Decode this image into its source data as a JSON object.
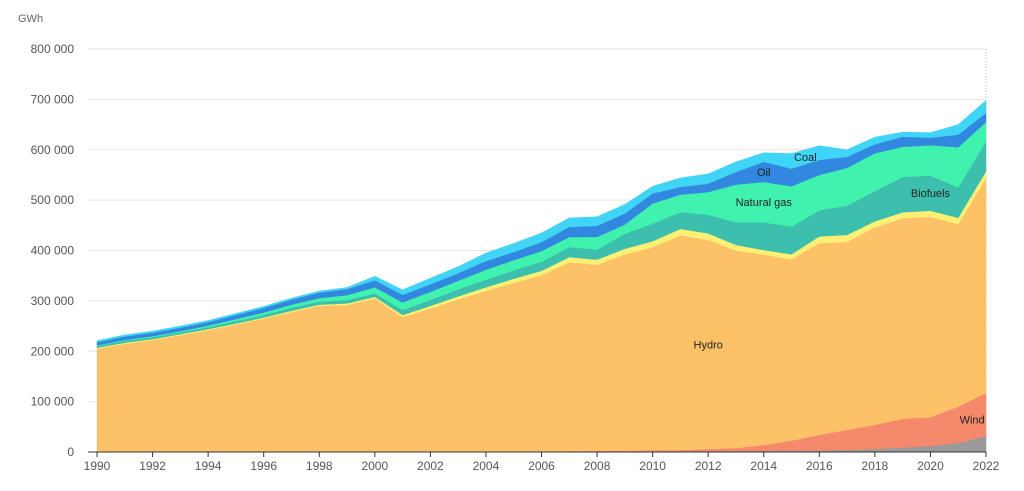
{
  "chart_data": {
    "type": "area",
    "stacked": true,
    "unit": "GWh",
    "x": [
      1990,
      1991,
      1992,
      1993,
      1994,
      1995,
      1996,
      1997,
      1998,
      1999,
      2000,
      2001,
      2002,
      2003,
      2004,
      2005,
      2006,
      2007,
      2008,
      2009,
      2010,
      2011,
      2012,
      2013,
      2014,
      2015,
      2016,
      2017,
      2018,
      2019,
      2020,
      2021,
      2022
    ],
    "xticks": [
      1990,
      1992,
      1994,
      1996,
      1998,
      2000,
      2002,
      2004,
      2006,
      2008,
      2010,
      2012,
      2014,
      2016,
      2018,
      2020,
      2022
    ],
    "yticks": [
      0,
      100000,
      200000,
      300000,
      400000,
      500000,
      600000,
      700000,
      800000
    ],
    "ytick_labels": [
      "0",
      "100 000",
      "200 000",
      "300 000",
      "400 000",
      "500 000",
      "600 000",
      "700 000",
      "800 000"
    ],
    "ylim": [
      0,
      800000
    ],
    "xlim": [
      1990,
      2022
    ],
    "grid": true,
    "series": [
      {
        "name": "",
        "color": "#9a9a9a",
        "values": [
          0,
          0,
          0,
          0,
          0,
          0,
          0,
          0,
          0,
          0,
          0,
          0,
          0,
          0,
          0,
          0,
          500,
          1000,
          1000,
          1000,
          1500,
          1500,
          2000,
          2000,
          2000,
          2500,
          3000,
          4000,
          6000,
          9000,
          12000,
          18000,
          32000
        ]
      },
      {
        "name": "Wind",
        "color": "#f5896b",
        "values": [
          0,
          0,
          0,
          0,
          0,
          0,
          0,
          0,
          0,
          0,
          0,
          0,
          0,
          0,
          0,
          0,
          300,
          800,
          1000,
          1500,
          2000,
          2500,
          4000,
          6000,
          12000,
          20000,
          31000,
          40000,
          48000,
          57000,
          57000,
          72000,
          85000
        ]
      },
      {
        "name": "Hydro",
        "color": "#fdc268",
        "values": [
          205000,
          215000,
          222000,
          232000,
          242000,
          253000,
          265000,
          278000,
          290000,
          292000,
          305000,
          268000,
          285000,
          303000,
          320000,
          336000,
          350000,
          375000,
          370000,
          390000,
          403000,
          426000,
          415000,
          392000,
          378000,
          360000,
          381000,
          373000,
          392000,
          398000,
          398000,
          362000,
          427000
        ]
      },
      {
        "name": "",
        "color": "#fef074",
        "values": [
          2000,
          2000,
          2000,
          2000,
          2000,
          2000,
          2000,
          2500,
          2500,
          3000,
          3000,
          4000,
          5000,
          6000,
          7000,
          8000,
          9000,
          10000,
          10000,
          11000,
          12000,
          13000,
          13000,
          11000,
          9000,
          10000,
          13000,
          14000,
          12000,
          12000,
          12000,
          13000,
          13000
        ]
      },
      {
        "name": "Biofuels",
        "color": "#3dbfae",
        "values": [
          4000,
          4000,
          4000,
          4000,
          4000,
          5000,
          5000,
          6000,
          6000,
          6500,
          7000,
          10000,
          12000,
          14000,
          15000,
          17000,
          18000,
          20000,
          20000,
          30000,
          35000,
          33000,
          37000,
          45000,
          55000,
          55000,
          52000,
          58000,
          60000,
          70000,
          70000,
          60000,
          60000
        ]
      },
      {
        "name": "Natural gas",
        "color": "#41f2ae",
        "values": [
          1000,
          1500,
          2000,
          2000,
          3000,
          4000,
          5000,
          6000,
          7000,
          10000,
          12000,
          15000,
          16000,
          17000,
          20000,
          20000,
          21000,
          20000,
          25000,
          18000,
          40000,
          35000,
          45000,
          75000,
          80000,
          80000,
          70000,
          75000,
          75000,
          60000,
          60000,
          80000,
          38000
        ]
      },
      {
        "name": "Oil",
        "color": "#3287de",
        "values": [
          6000,
          7000,
          7000,
          7000,
          7000,
          8000,
          9000,
          10000,
          11000,
          12000,
          14000,
          15000,
          15000,
          15000,
          17000,
          16000,
          18000,
          20000,
          22000,
          22000,
          20000,
          15000,
          17000,
          25000,
          40000,
          35000,
          30000,
          22000,
          18000,
          20000,
          15000,
          25000,
          18000
        ]
      },
      {
        "name": "Coal",
        "color": "#40d4f6",
        "values": [
          3000,
          3000,
          3000,
          3000,
          3000,
          3000,
          3000,
          3000,
          3000,
          3000,
          8000,
          10000,
          12000,
          13000,
          16000,
          17000,
          18000,
          18000,
          18000,
          18000,
          14000,
          18000,
          19000,
          20000,
          18000,
          30000,
          28000,
          14000,
          14000,
          9000,
          10000,
          20000,
          25000
        ]
      }
    ]
  }
}
